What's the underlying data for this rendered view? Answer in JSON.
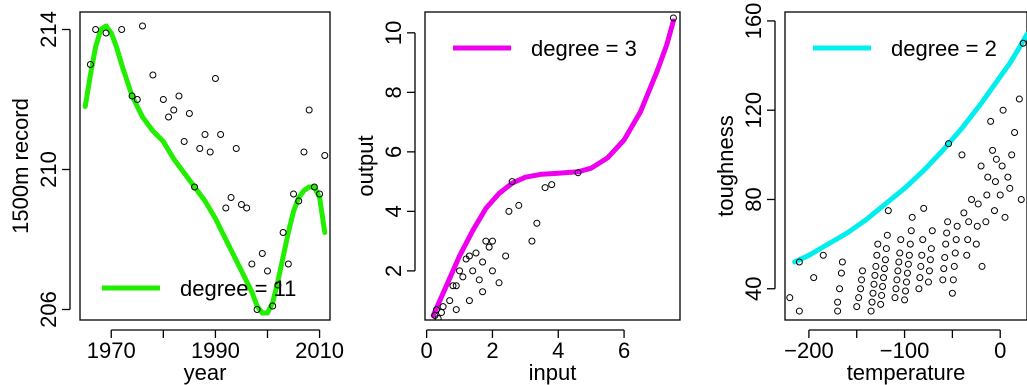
{
  "chart_data": [
    {
      "type": "scatter",
      "title": "",
      "xlabel": "year",
      "ylabel": "1500m record",
      "xlim": [
        1964,
        2012
      ],
      "ylim": [
        205.7,
        214.5
      ],
      "xticks": [
        1970,
        1990,
        2010
      ],
      "xticks_minor": [
        1980,
        2000
      ],
      "yticks": [
        206,
        210,
        214
      ],
      "curve_color": "#22ee00",
      "legend": {
        "label": "degree = 11",
        "position": "bottom-right"
      },
      "points": [
        {
          "x": 1966,
          "y": 213.0
        },
        {
          "x": 1967,
          "y": 214.0
        },
        {
          "x": 1969,
          "y": 213.9
        },
        {
          "x": 1972,
          "y": 214.0
        },
        {
          "x": 1974,
          "y": 212.1
        },
        {
          "x": 1975,
          "y": 212.0
        },
        {
          "x": 1976,
          "y": 214.1
        },
        {
          "x": 1978,
          "y": 212.7
        },
        {
          "x": 1980,
          "y": 212.0
        },
        {
          "x": 1981,
          "y": 211.5
        },
        {
          "x": 1982,
          "y": 211.7
        },
        {
          "x": 1983,
          "y": 212.1
        },
        {
          "x": 1984,
          "y": 210.8
        },
        {
          "x": 1985,
          "y": 211.6
        },
        {
          "x": 1986,
          "y": 209.5
        },
        {
          "x": 1987,
          "y": 210.6
        },
        {
          "x": 1988,
          "y": 211.0
        },
        {
          "x": 1989,
          "y": 210.5
        },
        {
          "x": 1990,
          "y": 212.6
        },
        {
          "x": 1991,
          "y": 211.0
        },
        {
          "x": 1992,
          "y": 208.9
        },
        {
          "x": 1993,
          "y": 209.2
        },
        {
          "x": 1994,
          "y": 210.6
        },
        {
          "x": 1995,
          "y": 209.0
        },
        {
          "x": 1996,
          "y": 208.9
        },
        {
          "x": 1997,
          "y": 207.3
        },
        {
          "x": 1998,
          "y": 206.0
        },
        {
          "x": 1999,
          "y": 207.6
        },
        {
          "x": 2000,
          "y": 207.1
        },
        {
          "x": 2001,
          "y": 206.1
        },
        {
          "x": 2002,
          "y": 206.7
        },
        {
          "x": 2003,
          "y": 208.2
        },
        {
          "x": 2004,
          "y": 207.3
        },
        {
          "x": 2005,
          "y": 209.3
        },
        {
          "x": 2006,
          "y": 209.1
        },
        {
          "x": 2007,
          "y": 210.5
        },
        {
          "x": 2008,
          "y": 211.7
        },
        {
          "x": 2009,
          "y": 209.5
        },
        {
          "x": 2010,
          "y": 209.3
        },
        {
          "x": 2011,
          "y": 210.4
        }
      ],
      "curve": [
        {
          "x": 1965,
          "y": 211.8
        },
        {
          "x": 1966,
          "y": 212.7
        },
        {
          "x": 1967,
          "y": 213.5
        },
        {
          "x": 1968,
          "y": 214.0
        },
        {
          "x": 1969,
          "y": 214.1
        },
        {
          "x": 1970,
          "y": 213.9
        },
        {
          "x": 1971,
          "y": 213.5
        },
        {
          "x": 1972,
          "y": 213.0
        },
        {
          "x": 1974,
          "y": 212.1
        },
        {
          "x": 1976,
          "y": 211.5
        },
        {
          "x": 1978,
          "y": 211.1
        },
        {
          "x": 1980,
          "y": 210.8
        },
        {
          "x": 1982,
          "y": 210.3
        },
        {
          "x": 1984,
          "y": 209.9
        },
        {
          "x": 1986,
          "y": 209.5
        },
        {
          "x": 1988,
          "y": 209.1
        },
        {
          "x": 1990,
          "y": 208.6
        },
        {
          "x": 1992,
          "y": 208.0
        },
        {
          "x": 1994,
          "y": 207.4
        },
        {
          "x": 1996,
          "y": 206.8
        },
        {
          "x": 1997,
          "y": 206.5
        },
        {
          "x": 1998,
          "y": 206.1
        },
        {
          "x": 1999,
          "y": 205.9
        },
        {
          "x": 2000,
          "y": 205.9
        },
        {
          "x": 2001,
          "y": 206.2
        },
        {
          "x": 2002,
          "y": 206.8
        },
        {
          "x": 2003,
          "y": 207.5
        },
        {
          "x": 2004,
          "y": 208.2
        },
        {
          "x": 2005,
          "y": 208.8
        },
        {
          "x": 2006,
          "y": 209.2
        },
        {
          "x": 2007,
          "y": 209.4
        },
        {
          "x": 2008,
          "y": 209.5
        },
        {
          "x": 2009,
          "y": 209.5
        },
        {
          "x": 2010,
          "y": 209.2
        },
        {
          "x": 2011,
          "y": 208.2
        }
      ]
    },
    {
      "type": "scatter",
      "title": "",
      "xlabel": "input",
      "ylabel": "output",
      "xlim": [
        -0.05,
        7.7
      ],
      "ylim": [
        0.35,
        10.7
      ],
      "xticks": [
        0,
        2,
        4,
        6
      ],
      "yticks": [
        2,
        4,
        6,
        8,
        10
      ],
      "curve_color": "#ee00ee",
      "legend": {
        "label": "degree = 3",
        "position": "top-left"
      },
      "points": [
        {
          "x": 0.25,
          "y": 0.5
        },
        {
          "x": 0.3,
          "y": 0.7
        },
        {
          "x": 0.35,
          "y": 0.4
        },
        {
          "x": 0.45,
          "y": 0.6
        },
        {
          "x": 0.5,
          "y": 0.8
        },
        {
          "x": 0.7,
          "y": 1.0
        },
        {
          "x": 0.8,
          "y": 1.5
        },
        {
          "x": 0.9,
          "y": 0.7
        },
        {
          "x": 0.9,
          "y": 1.5
        },
        {
          "x": 1.0,
          "y": 2.0
        },
        {
          "x": 1.1,
          "y": 1.8
        },
        {
          "x": 1.2,
          "y": 2.4
        },
        {
          "x": 1.3,
          "y": 2.5
        },
        {
          "x": 1.3,
          "y": 1.0
        },
        {
          "x": 1.4,
          "y": 2.0
        },
        {
          "x": 1.5,
          "y": 2.6
        },
        {
          "x": 1.6,
          "y": 1.7
        },
        {
          "x": 1.7,
          "y": 1.3
        },
        {
          "x": 1.7,
          "y": 2.3
        },
        {
          "x": 1.8,
          "y": 3.0
        },
        {
          "x": 1.9,
          "y": 2.8
        },
        {
          "x": 2.0,
          "y": 3.0
        },
        {
          "x": 2.0,
          "y": 2.0
        },
        {
          "x": 2.2,
          "y": 1.6
        },
        {
          "x": 2.4,
          "y": 2.5
        },
        {
          "x": 2.5,
          "y": 4.0
        },
        {
          "x": 2.6,
          "y": 5.0
        },
        {
          "x": 2.8,
          "y": 4.2
        },
        {
          "x": 3.2,
          "y": 3.0
        },
        {
          "x": 3.35,
          "y": 3.6
        },
        {
          "x": 3.6,
          "y": 4.8
        },
        {
          "x": 3.8,
          "y": 4.9
        },
        {
          "x": 4.6,
          "y": 5.3
        },
        {
          "x": 7.5,
          "y": 10.5
        }
      ],
      "curve": [
        {
          "x": 0.2,
          "y": 0.5
        },
        {
          "x": 0.6,
          "y": 1.5
        },
        {
          "x": 1.0,
          "y": 2.5
        },
        {
          "x": 1.4,
          "y": 3.35
        },
        {
          "x": 1.8,
          "y": 4.1
        },
        {
          "x": 2.2,
          "y": 4.6
        },
        {
          "x": 2.6,
          "y": 4.95
        },
        {
          "x": 3.0,
          "y": 5.15
        },
        {
          "x": 3.5,
          "y": 5.25
        },
        {
          "x": 4.0,
          "y": 5.28
        },
        {
          "x": 4.6,
          "y": 5.33
        },
        {
          "x": 5.0,
          "y": 5.45
        },
        {
          "x": 5.5,
          "y": 5.8
        },
        {
          "x": 6.0,
          "y": 6.4
        },
        {
          "x": 6.5,
          "y": 7.35
        },
        {
          "x": 7.0,
          "y": 8.7
        },
        {
          "x": 7.3,
          "y": 9.6
        },
        {
          "x": 7.5,
          "y": 10.4
        }
      ]
    },
    {
      "type": "scatter",
      "title": "",
      "xlabel": "temperature",
      "ylabel": "toughness",
      "xlim": [
        -225,
        28
      ],
      "ylim": [
        26,
        164
      ],
      "xticks": [
        -200,
        -100,
        0
      ],
      "xticks_minor": [
        -150,
        -50
      ],
      "yticks": [
        40,
        80,
        120,
        160
      ],
      "curve_color": "#00eeee",
      "legend": {
        "label": "degree = 2",
        "position": "top-left"
      },
      "points": [
        {
          "x": -220,
          "y": 36
        },
        {
          "x": -210,
          "y": 30
        },
        {
          "x": -210,
          "y": 52
        },
        {
          "x": -195,
          "y": 45
        },
        {
          "x": -185,
          "y": 55
        },
        {
          "x": -170,
          "y": 30
        },
        {
          "x": -170,
          "y": 34
        },
        {
          "x": -168,
          "y": 40
        },
        {
          "x": -166,
          "y": 47
        },
        {
          "x": -165,
          "y": 52
        },
        {
          "x": -150,
          "y": 32
        },
        {
          "x": -148,
          "y": 36
        },
        {
          "x": -146,
          "y": 40
        },
        {
          "x": -145,
          "y": 44
        },
        {
          "x": -144,
          "y": 48
        },
        {
          "x": -135,
          "y": 30
        },
        {
          "x": -134,
          "y": 34
        },
        {
          "x": -133,
          "y": 38
        },
        {
          "x": -132,
          "y": 42
        },
        {
          "x": -131,
          "y": 46
        },
        {
          "x": -130,
          "y": 50
        },
        {
          "x": -129,
          "y": 55
        },
        {
          "x": -128,
          "y": 60
        },
        {
          "x": -125,
          "y": 33
        },
        {
          "x": -124,
          "y": 37
        },
        {
          "x": -123,
          "y": 41
        },
        {
          "x": -122,
          "y": 45
        },
        {
          "x": -121,
          "y": 49
        },
        {
          "x": -120,
          "y": 53
        },
        {
          "x": -119,
          "y": 58
        },
        {
          "x": -118,
          "y": 64
        },
        {
          "x": -117,
          "y": 75
        },
        {
          "x": -110,
          "y": 36
        },
        {
          "x": -109,
          "y": 40
        },
        {
          "x": -108,
          "y": 44
        },
        {
          "x": -107,
          "y": 48
        },
        {
          "x": -106,
          "y": 52
        },
        {
          "x": -105,
          "y": 56
        },
        {
          "x": -104,
          "y": 62
        },
        {
          "x": -100,
          "y": 35
        },
        {
          "x": -99,
          "y": 39
        },
        {
          "x": -98,
          "y": 43
        },
        {
          "x": -97,
          "y": 47
        },
        {
          "x": -96,
          "y": 51
        },
        {
          "x": -95,
          "y": 55
        },
        {
          "x": -94,
          "y": 60
        },
        {
          "x": -93,
          "y": 66
        },
        {
          "x": -92,
          "y": 72
        },
        {
          "x": -85,
          "y": 40
        },
        {
          "x": -84,
          "y": 45
        },
        {
          "x": -83,
          "y": 50
        },
        {
          "x": -82,
          "y": 55
        },
        {
          "x": -81,
          "y": 62
        },
        {
          "x": -80,
          "y": 76
        },
        {
          "x": -75,
          "y": 43
        },
        {
          "x": -74,
          "y": 48
        },
        {
          "x": -73,
          "y": 53
        },
        {
          "x": -72,
          "y": 58
        },
        {
          "x": -71,
          "y": 66
        },
        {
          "x": -60,
          "y": 44
        },
        {
          "x": -59,
          "y": 49
        },
        {
          "x": -58,
          "y": 54
        },
        {
          "x": -57,
          "y": 60
        },
        {
          "x": -56,
          "y": 65
        },
        {
          "x": -55,
          "y": 70
        },
        {
          "x": -54,
          "y": 105
        },
        {
          "x": -50,
          "y": 38
        },
        {
          "x": -49,
          "y": 44
        },
        {
          "x": -48,
          "y": 50
        },
        {
          "x": -47,
          "y": 56
        },
        {
          "x": -46,
          "y": 62
        },
        {
          "x": -45,
          "y": 68
        },
        {
          "x": -40,
          "y": 100
        },
        {
          "x": -38,
          "y": 74
        },
        {
          "x": -35,
          "y": 55
        },
        {
          "x": -34,
          "y": 62
        },
        {
          "x": -33,
          "y": 70
        },
        {
          "x": -30,
          "y": 80
        },
        {
          "x": -25,
          "y": 60
        },
        {
          "x": -24,
          "y": 68
        },
        {
          "x": -23,
          "y": 78
        },
        {
          "x": -20,
          "y": 95
        },
        {
          "x": -19,
          "y": 50
        },
        {
          "x": -15,
          "y": 70
        },
        {
          "x": -14,
          "y": 82
        },
        {
          "x": -13,
          "y": 90
        },
        {
          "x": -10,
          "y": 115
        },
        {
          "x": -8,
          "y": 102
        },
        {
          "x": -6,
          "y": 75
        },
        {
          "x": -5,
          "y": 88
        },
        {
          "x": -4,
          "y": 98
        },
        {
          "x": 0,
          "y": 82
        },
        {
          "x": 2,
          "y": 95
        },
        {
          "x": 3,
          "y": 120
        },
        {
          "x": 5,
          "y": 72
        },
        {
          "x": 8,
          "y": 90
        },
        {
          "x": 10,
          "y": 85
        },
        {
          "x": 12,
          "y": 100
        },
        {
          "x": 15,
          "y": 110
        },
        {
          "x": 20,
          "y": 125
        },
        {
          "x": 22,
          "y": 80
        },
        {
          "x": 24,
          "y": 150
        }
      ],
      "curve": [
        {
          "x": -215,
          "y": 52
        },
        {
          "x": -200,
          "y": 55
        },
        {
          "x": -180,
          "y": 60
        },
        {
          "x": -160,
          "y": 65
        },
        {
          "x": -140,
          "y": 71
        },
        {
          "x": -120,
          "y": 78
        },
        {
          "x": -100,
          "y": 85
        },
        {
          "x": -80,
          "y": 93
        },
        {
          "x": -60,
          "y": 102
        },
        {
          "x": -40,
          "y": 112
        },
        {
          "x": -20,
          "y": 123
        },
        {
          "x": 0,
          "y": 135
        },
        {
          "x": 10,
          "y": 141
        },
        {
          "x": 20,
          "y": 148
        },
        {
          "x": 28,
          "y": 154
        }
      ]
    }
  ]
}
